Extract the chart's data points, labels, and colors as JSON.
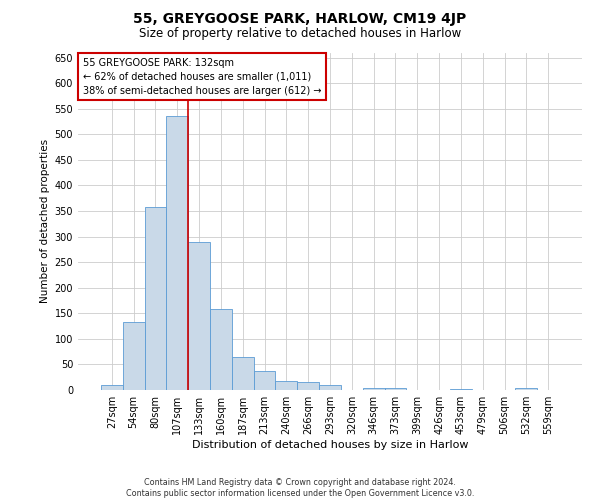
{
  "title": "55, GREYGOOSE PARK, HARLOW, CM19 4JP",
  "subtitle": "Size of property relative to detached houses in Harlow",
  "xlabel": "Distribution of detached houses by size in Harlow",
  "ylabel": "Number of detached properties",
  "categories": [
    "27sqm",
    "54sqm",
    "80sqm",
    "107sqm",
    "133sqm",
    "160sqm",
    "187sqm",
    "213sqm",
    "240sqm",
    "266sqm",
    "293sqm",
    "320sqm",
    "346sqm",
    "373sqm",
    "399sqm",
    "426sqm",
    "453sqm",
    "479sqm",
    "506sqm",
    "532sqm",
    "559sqm"
  ],
  "values": [
    10,
    133,
    358,
    535,
    290,
    158,
    65,
    38,
    18,
    15,
    10,
    0,
    3,
    3,
    0,
    0,
    2,
    0,
    0,
    3,
    0
  ],
  "bar_color": "#c9d9e8",
  "bar_edge_color": "#5b9bd5",
  "red_line_index": 4,
  "annotation_text": "55 GREYGOOSE PARK: 132sqm\n← 62% of detached houses are smaller (1,011)\n38% of semi-detached houses are larger (612) →",
  "annotation_box_color": "#ffffff",
  "annotation_box_edge_color": "#cc0000",
  "ylim": [
    0,
    660
  ],
  "yticks": [
    0,
    50,
    100,
    150,
    200,
    250,
    300,
    350,
    400,
    450,
    500,
    550,
    600,
    650
  ],
  "footer_line1": "Contains HM Land Registry data © Crown copyright and database right 2024.",
  "footer_line2": "Contains public sector information licensed under the Open Government Licence v3.0.",
  "background_color": "#ffffff",
  "grid_color": "#cccccc",
  "title_fontsize": 10,
  "subtitle_fontsize": 8.5,
  "xlabel_fontsize": 8,
  "ylabel_fontsize": 7.5,
  "tick_fontsize": 7,
  "annotation_fontsize": 7,
  "footer_fontsize": 5.8
}
